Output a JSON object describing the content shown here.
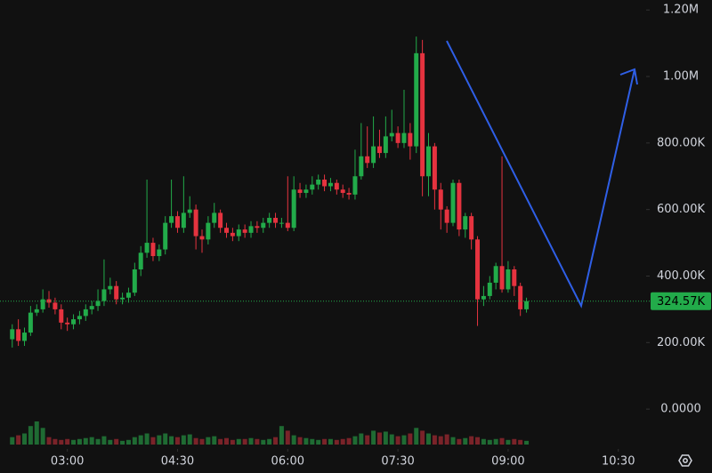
{
  "chart_data": {
    "type": "candlestick",
    "up_color": "#22ab4a",
    "down_color": "#e5333f",
    "vol_up_color": "#1f6b33",
    "vol_down_color": "#7a2329",
    "xlim": [
      125,
      652
    ],
    "xticks": [
      {
        "value": 180,
        "label": "03:00"
      },
      {
        "value": 270,
        "label": "04:30"
      },
      {
        "value": 360,
        "label": "06:00"
      },
      {
        "value": 450,
        "label": "07:30"
      },
      {
        "value": 540,
        "label": "09:00"
      },
      {
        "value": 630,
        "label": "10:30"
      }
    ],
    "ylim": [
      -120000,
      1230000
    ],
    "yticks": [
      {
        "value": 0,
        "label": "0.0000"
      },
      {
        "value": 200000,
        "label": "200.00K"
      },
      {
        "value": 400000,
        "label": "400.00K"
      },
      {
        "value": 600000,
        "label": "600.00K"
      },
      {
        "value": 800000,
        "label": "800.00K"
      },
      {
        "value": 1000000,
        "label": "1.00M"
      },
      {
        "value": 1200000,
        "label": "1.20M"
      }
    ],
    "last_price": {
      "value": 324570,
      "label": "324.57K"
    },
    "x": [
      135,
      140,
      145,
      150,
      155,
      160,
      165,
      170,
      175,
      180,
      185,
      190,
      195,
      200,
      205,
      210,
      215,
      220,
      225,
      230,
      235,
      240,
      245,
      250,
      255,
      260,
      265,
      270,
      275,
      280,
      285,
      290,
      295,
      300,
      305,
      310,
      315,
      320,
      325,
      330,
      335,
      340,
      345,
      350,
      355,
      360,
      365,
      370,
      375,
      380,
      385,
      390,
      395,
      400,
      405,
      410,
      415,
      420,
      425,
      430,
      435,
      440,
      445,
      450,
      455,
      460,
      465,
      470,
      475,
      480,
      485,
      490,
      495,
      500,
      505,
      510,
      515,
      520,
      525,
      530,
      535,
      540,
      545,
      550,
      555
    ],
    "open": [
      210000,
      240000,
      205000,
      230000,
      290000,
      300000,
      330000,
      320000,
      300000,
      260000,
      255000,
      270000,
      280000,
      300000,
      310000,
      325000,
      360000,
      370000,
      330000,
      335000,
      350000,
      420000,
      470000,
      500000,
      460000,
      480000,
      560000,
      580000,
      545000,
      590000,
      600000,
      520000,
      510000,
      560000,
      590000,
      545000,
      530000,
      520000,
      540000,
      530000,
      550000,
      545000,
      560000,
      575000,
      560000,
      560000,
      545000,
      660000,
      650000,
      660000,
      675000,
      690000,
      670000,
      680000,
      660000,
      650000,
      645000,
      700000,
      760000,
      740000,
      790000,
      770000,
      820000,
      830000,
      800000,
      830000,
      790000,
      1070000,
      700000,
      790000,
      660000,
      600000,
      560000,
      680000,
      540000,
      580000,
      510000,
      330000,
      340000,
      380000,
      430000,
      360000,
      420000,
      370000,
      300000
    ],
    "high": [
      255000,
      270000,
      245000,
      310000,
      315000,
      360000,
      355000,
      335000,
      315000,
      275000,
      285000,
      295000,
      315000,
      325000,
      360000,
      450000,
      395000,
      385000,
      350000,
      365000,
      440000,
      490000,
      690000,
      515000,
      495000,
      580000,
      690000,
      595000,
      700000,
      640000,
      615000,
      540000,
      580000,
      620000,
      600000,
      560000,
      545000,
      555000,
      555000,
      565000,
      565000,
      575000,
      590000,
      590000,
      575000,
      700000,
      700000,
      680000,
      675000,
      700000,
      705000,
      705000,
      695000,
      690000,
      675000,
      665000,
      780000,
      860000,
      850000,
      880000,
      840000,
      880000,
      900000,
      850000,
      960000,
      860000,
      1120000,
      1110000,
      830000,
      800000,
      680000,
      610000,
      690000,
      690000,
      590000,
      590000,
      520000,
      370000,
      400000,
      440000,
      760000,
      445000,
      430000,
      380000,
      335000
    ],
    "low": [
      185000,
      190000,
      190000,
      220000,
      280000,
      290000,
      305000,
      285000,
      240000,
      235000,
      240000,
      255000,
      265000,
      285000,
      295000,
      310000,
      345000,
      315000,
      315000,
      320000,
      340000,
      400000,
      455000,
      445000,
      445000,
      465000,
      545000,
      530000,
      530000,
      575000,
      480000,
      470000,
      495000,
      545000,
      530000,
      515000,
      505000,
      505000,
      515000,
      515000,
      530000,
      530000,
      545000,
      545000,
      545000,
      535000,
      535000,
      635000,
      635000,
      645000,
      660000,
      655000,
      655000,
      645000,
      635000,
      630000,
      630000,
      690000,
      725000,
      725000,
      755000,
      755000,
      805000,
      785000,
      785000,
      750000,
      770000,
      640000,
      640000,
      600000,
      540000,
      530000,
      550000,
      520000,
      515000,
      480000,
      250000,
      310000,
      330000,
      360000,
      350000,
      350000,
      340000,
      280000,
      290000
    ],
    "close": [
      240000,
      205000,
      230000,
      290000,
      300000,
      330000,
      320000,
      300000,
      260000,
      255000,
      270000,
      280000,
      300000,
      310000,
      325000,
      360000,
      370000,
      330000,
      335000,
      350000,
      420000,
      470000,
      500000,
      460000,
      480000,
      560000,
      580000,
      545000,
      590000,
      600000,
      520000,
      510000,
      560000,
      590000,
      545000,
      530000,
      520000,
      540000,
      530000,
      550000,
      545000,
      560000,
      575000,
      560000,
      560000,
      545000,
      660000,
      650000,
      660000,
      675000,
      690000,
      670000,
      680000,
      660000,
      650000,
      645000,
      700000,
      760000,
      740000,
      790000,
      770000,
      820000,
      830000,
      800000,
      830000,
      790000,
      1070000,
      700000,
      790000,
      660000,
      600000,
      560000,
      680000,
      540000,
      580000,
      510000,
      330000,
      340000,
      380000,
      430000,
      360000,
      420000,
      370000,
      300000,
      324570
    ],
    "volume": [
      8,
      10,
      12,
      20,
      25,
      18,
      8,
      6,
      5,
      6,
      5,
      6,
      7,
      8,
      6,
      9,
      5,
      6,
      4,
      5,
      8,
      10,
      12,
      8,
      10,
      12,
      9,
      8,
      10,
      11,
      7,
      6,
      8,
      9,
      6,
      7,
      5,
      6,
      6,
      7,
      6,
      5,
      6,
      8,
      20,
      15,
      10,
      8,
      7,
      6,
      5,
      6,
      6,
      5,
      6,
      7,
      9,
      12,
      10,
      15,
      13,
      14,
      11,
      9,
      10,
      12,
      18,
      15,
      12,
      10,
      9,
      11,
      8,
      6,
      7,
      9,
      8,
      6,
      5,
      6,
      7,
      5,
      6,
      5,
      4
    ]
  }
}
